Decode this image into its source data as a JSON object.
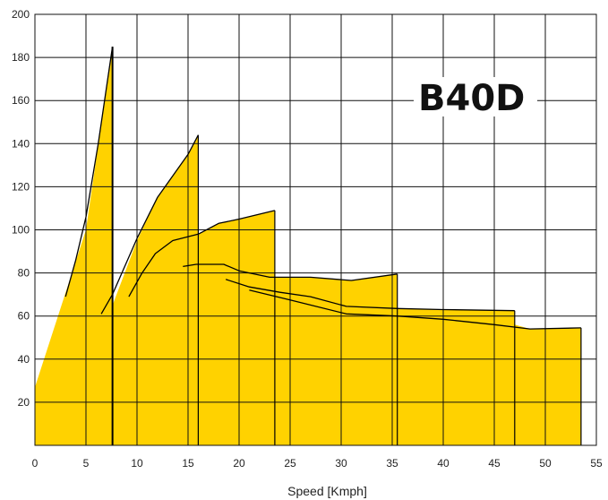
{
  "chart_data": {
    "type": "area",
    "title": "",
    "badge": "B40D",
    "xlabel": "Speed [Kmph]",
    "ylabel": "",
    "xlim": [
      0,
      55
    ],
    "ylim": [
      0,
      200
    ],
    "xticks": [
      0,
      5,
      10,
      15,
      20,
      25,
      30,
      35,
      40,
      45,
      50,
      55
    ],
    "yticks": [
      20,
      40,
      60,
      80,
      100,
      120,
      140,
      160,
      180,
      200
    ],
    "grid": true,
    "fill_color": "#FFD200",
    "line_color": "#000000",
    "bands": [
      {
        "name": "",
        "points": [
          [
            0,
            27
          ],
          [
            5,
            100
          ],
          [
            7.6,
            185
          ],
          [
            7.6,
            0
          ],
          [
            0,
            0
          ]
        ]
      },
      {
        "name": "",
        "points": [
          [
            7.6,
            65
          ],
          [
            10,
            95
          ],
          [
            12,
            115
          ],
          [
            15,
            135
          ],
          [
            16,
            144
          ],
          [
            16,
            0
          ],
          [
            7.6,
            0
          ]
        ]
      },
      {
        "name": "",
        "points": [
          [
            16,
            98
          ],
          [
            18,
            103
          ],
          [
            20,
            105
          ],
          [
            23.5,
            109
          ],
          [
            23.5,
            0
          ],
          [
            16,
            0
          ]
        ]
      },
      {
        "name": "",
        "points": [
          [
            23.5,
            78
          ],
          [
            27,
            78
          ],
          [
            31,
            76.5
          ],
          [
            35.5,
            79.5
          ],
          [
            35.5,
            0
          ],
          [
            23.5,
            0
          ]
        ]
      },
      {
        "name": "",
        "points": [
          [
            35.5,
            63.5
          ],
          [
            40,
            63
          ],
          [
            47,
            62.5
          ],
          [
            47,
            0
          ],
          [
            35.5,
            0
          ]
        ]
      },
      {
        "name": "",
        "points": [
          [
            47,
            56
          ],
          [
            48.5,
            54
          ],
          [
            53.5,
            54.5
          ],
          [
            53.5,
            0
          ],
          [
            47,
            0
          ]
        ]
      }
    ],
    "series": [
      {
        "name": "",
        "points": [
          [
            3,
            69
          ],
          [
            4,
            86
          ],
          [
            5,
            106
          ],
          [
            6.2,
            140
          ],
          [
            7.6,
            185
          ]
        ]
      },
      {
        "name": "",
        "points": [
          [
            6.5,
            61
          ],
          [
            7.6,
            70
          ],
          [
            10,
            96
          ],
          [
            12,
            115
          ],
          [
            15,
            135
          ],
          [
            16,
            144
          ]
        ]
      },
      {
        "name": "",
        "points": [
          [
            9.2,
            69
          ],
          [
            10.5,
            80
          ],
          [
            11.8,
            89
          ],
          [
            13.5,
            95
          ],
          [
            16,
            98
          ],
          [
            18,
            103
          ],
          [
            20,
            105
          ],
          [
            23.5,
            109
          ]
        ]
      },
      {
        "name": "",
        "points": [
          [
            14.5,
            83
          ],
          [
            15.8,
            84
          ],
          [
            17,
            84
          ],
          [
            18.5,
            84
          ],
          [
            20,
            81
          ],
          [
            23,
            78
          ],
          [
            27,
            78
          ],
          [
            31,
            76.5
          ],
          [
            35.5,
            79.5
          ]
        ]
      },
      {
        "name": "",
        "points": [
          [
            18.7,
            77
          ],
          [
            21,
            73.5
          ],
          [
            24,
            71
          ],
          [
            27,
            69
          ],
          [
            30.5,
            64.5
          ],
          [
            35.5,
            63.5
          ],
          [
            40,
            63
          ],
          [
            47,
            62.5
          ]
        ]
      },
      {
        "name": "",
        "points": [
          [
            21,
            72
          ],
          [
            25,
            67.5
          ],
          [
            30.5,
            61
          ],
          [
            35.5,
            60
          ],
          [
            40,
            58.5
          ],
          [
            45,
            56
          ],
          [
            48.5,
            54
          ],
          [
            53.5,
            54.5
          ]
        ]
      }
    ],
    "vertical_lines": [
      {
        "x": 7.6,
        "y_top": 185
      },
      {
        "x": 16,
        "y_top": 144
      },
      {
        "x": 23.5,
        "y_top": 109
      },
      {
        "x": 35.5,
        "y_top": 79.5
      },
      {
        "x": 47,
        "y_top": 62.5
      },
      {
        "x": 53.5,
        "y_top": 54.5
      }
    ]
  }
}
